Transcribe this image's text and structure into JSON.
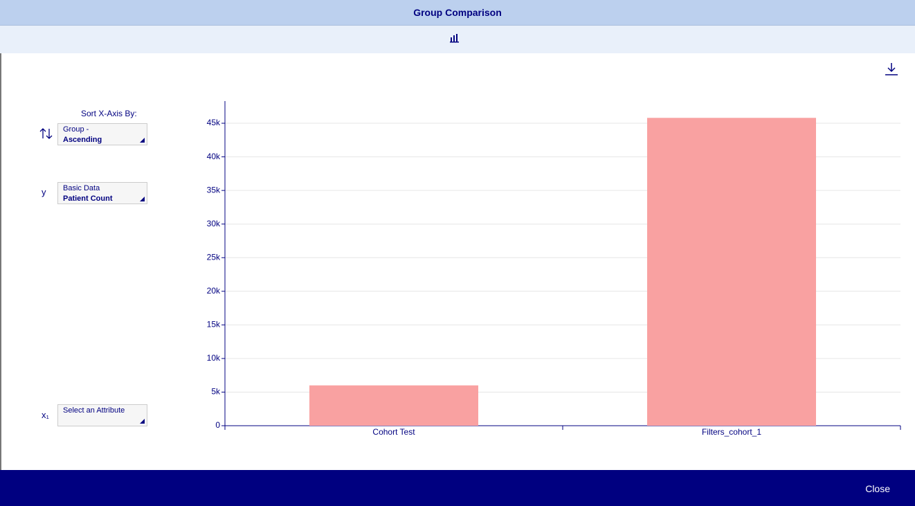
{
  "header": {
    "title": "Group Comparison"
  },
  "controls": {
    "sort_label": "Sort X-Axis By:",
    "sort_line1": "Group -",
    "sort_line2": "Ascending",
    "y_label": "y",
    "y_line1": "Basic Data",
    "y_line2": "Patient Count",
    "x_label": "x₁",
    "x_line1": "Select an Attribute"
  },
  "chart_data": {
    "type": "bar",
    "categories": [
      "Cohort Test",
      "Filters_cohort_1"
    ],
    "values": [
      6000,
      45800
    ],
    "color": "#f9a1a1",
    "ylim": [
      0,
      48300
    ],
    "yticks": [
      0,
      {
        "value": 5000,
        "label": "5k"
      },
      {
        "value": 10000,
        "label": "10k"
      },
      {
        "value": 15000,
        "label": "15k"
      },
      {
        "value": 20000,
        "label": "20k"
      },
      {
        "value": 25000,
        "label": "25k"
      },
      {
        "value": 30000,
        "label": "30k"
      },
      {
        "value": 35000,
        "label": "35k"
      },
      {
        "value": 40000,
        "label": "40k"
      },
      {
        "value": 45000,
        "label": "45k"
      }
    ],
    "grid": true
  },
  "footer": {
    "close": "Close"
  }
}
